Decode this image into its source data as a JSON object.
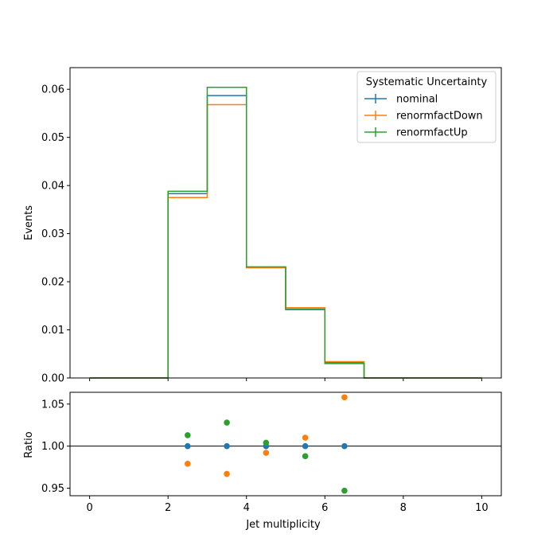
{
  "chart_data": [
    {
      "type": "line",
      "subtype": "step-histogram",
      "ylabel": "Events",
      "xlim": [
        -0.5,
        10.5
      ],
      "ylim": [
        0,
        0.0645
      ],
      "xticks": [
        0,
        2,
        4,
        6,
        8,
        10
      ],
      "yticks": [
        "0.00",
        "0.01",
        "0.02",
        "0.03",
        "0.04",
        "0.05",
        "0.06"
      ],
      "bin_edges": [
        0,
        1,
        2,
        3,
        4,
        5,
        6,
        7,
        8,
        9,
        10
      ],
      "legend": {
        "title": "Systematic Uncertainty",
        "location": "upper right"
      },
      "series": [
        {
          "name": "nominal",
          "color": "#1f77b4",
          "values": [
            0,
            0,
            0.0383,
            0.0587,
            0.023,
            0.0143,
            0.0032,
            0,
            0,
            0
          ]
        },
        {
          "name": "renormfactDown",
          "color": "#ff7f0e",
          "values": [
            0,
            0,
            0.0375,
            0.0568,
            0.0229,
            0.0146,
            0.0034,
            0,
            0,
            0
          ]
        },
        {
          "name": "renormfactUp",
          "color": "#2ca02c",
          "values": [
            0,
            0,
            0.0388,
            0.0604,
            0.0231,
            0.0142,
            0.003,
            0,
            0,
            0
          ]
        }
      ]
    },
    {
      "type": "scatter",
      "xlabel": "Jet multiplicity",
      "ylabel": "Ratio",
      "xlim": [
        -0.5,
        10.5
      ],
      "ylim": [
        0.941,
        1.064
      ],
      "xticks": [
        "0",
        "2",
        "4",
        "6",
        "8",
        "10"
      ],
      "yticks": [
        "0.95",
        "1.00",
        "1.05"
      ],
      "reference_line": 1.0,
      "x": [
        2.5,
        3.5,
        4.5,
        5.5,
        6.5
      ],
      "series": [
        {
          "name": "nominal",
          "color": "#1f77b4",
          "values": [
            1.0,
            1.0,
            1.0,
            1.0,
            1.0
          ]
        },
        {
          "name": "renormfactDown",
          "color": "#ff7f0e",
          "values": [
            0.979,
            0.967,
            0.992,
            1.01,
            1.058
          ]
        },
        {
          "name": "renormfactUp",
          "color": "#2ca02c",
          "values": [
            1.013,
            1.028,
            1.004,
            0.988,
            0.947
          ]
        }
      ]
    }
  ]
}
